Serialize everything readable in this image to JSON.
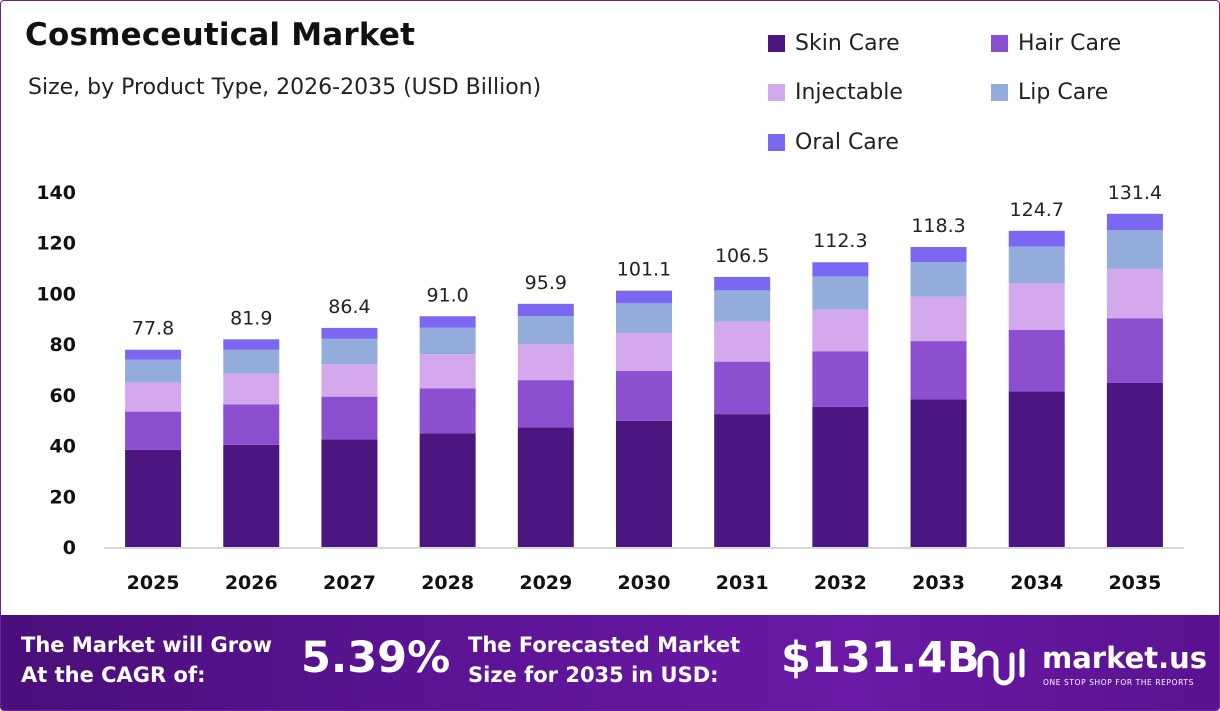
{
  "title": "Cosmeceutical Market",
  "subtitle": "Size, by Product Type, 2026-2035 (USD Billion)",
  "colors": {
    "skin_care": "#4b1680",
    "hair_care": "#8b4fcf",
    "injectable": "#d3a8ec",
    "lip_care": "#93acdc",
    "oral_care": "#7a68f2",
    "axis": "#cccccc",
    "footer": "#5a1291"
  },
  "chart_data": {
    "type": "bar",
    "stacked": true,
    "categories": [
      "2025",
      "2026",
      "2027",
      "2028",
      "2029",
      "2030",
      "2031",
      "2032",
      "2033",
      "2034",
      "2035"
    ],
    "series": [
      {
        "name": "Skin Care",
        "color": "#4b1680",
        "values": [
          38.3,
          40.3,
          42.5,
          44.8,
          47.2,
          49.8,
          52.4,
          55.3,
          58.2,
          61.4,
          64.7
        ]
      },
      {
        "name": "Hair Care",
        "color": "#8b4fcf",
        "values": [
          15.1,
          15.9,
          16.8,
          17.7,
          18.6,
          19.6,
          20.7,
          21.8,
          23.0,
          24.2,
          25.5
        ]
      },
      {
        "name": "Injectable",
        "color": "#d3a8ec",
        "values": [
          11.5,
          12.1,
          12.8,
          13.5,
          14.2,
          15.0,
          15.8,
          16.6,
          17.5,
          18.5,
          19.5
        ]
      },
      {
        "name": "Lip Care",
        "color": "#93acdc",
        "values": [
          9.0,
          9.5,
          10.0,
          10.5,
          11.1,
          11.7,
          12.3,
          13.0,
          13.7,
          14.4,
          15.2
        ]
      },
      {
        "name": "Oral Care",
        "color": "#7a68f2",
        "values": [
          3.9,
          4.1,
          4.3,
          4.5,
          4.8,
          5.0,
          5.3,
          5.6,
          5.9,
          6.2,
          6.5
        ]
      }
    ],
    "totals": [
      "77.8",
      "81.9",
      "86.4",
      "91.0",
      "95.9",
      "101.1",
      "106.5",
      "112.3",
      "118.3",
      "124.7",
      "131.4"
    ],
    "ylim": [
      0,
      140
    ],
    "yticks": [
      "0",
      "20",
      "40",
      "60",
      "80",
      "100",
      "120",
      "140"
    ],
    "xlabel": "",
    "ylabel": "",
    "grid": false,
    "legend_position": "top-right"
  },
  "footer": {
    "cagr_label_line1": "The Market will Grow",
    "cagr_label_line2": "At the CAGR of:",
    "cagr_value": "5.39%",
    "forecast_label_line1": "The Forecasted Market",
    "forecast_label_line2": "Size for 2035 in USD:",
    "forecast_value": "$131.4B",
    "logo_name": "market.us",
    "logo_tagline": "ONE STOP SHOP FOR THE REPORTS",
    "logo_icon": "market-us-logo-icon"
  }
}
